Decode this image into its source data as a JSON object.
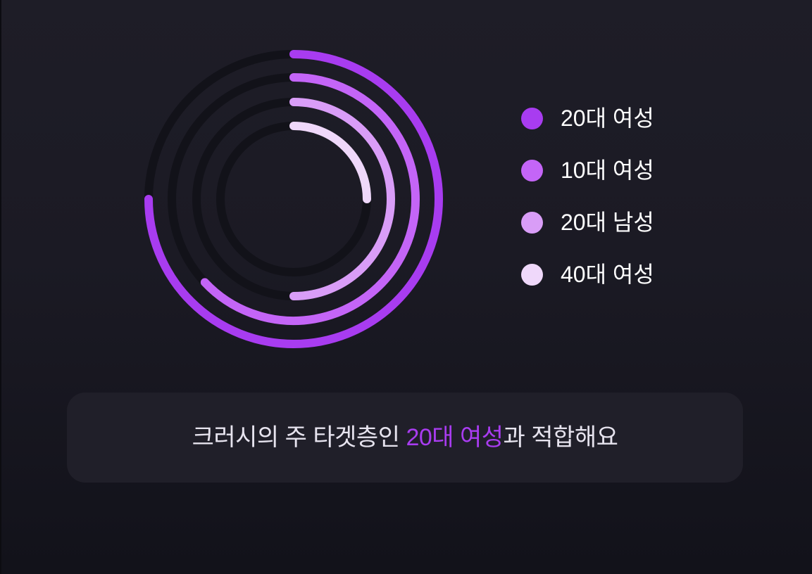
{
  "chart_data": {
    "type": "radial-bar",
    "max": 100,
    "series": [
      {
        "name": "20대 여성",
        "value": 75,
        "color": "#a83cf0"
      },
      {
        "name": "10대 여성",
        "value": 63,
        "color": "#c465f7"
      },
      {
        "name": "20대 남성",
        "value": 50,
        "color": "#d99df7"
      },
      {
        "name": "40대 여성",
        "value": 25,
        "color": "#efd8fa"
      }
    ],
    "track_color": "#121219",
    "legend_position": "right"
  },
  "legend": [
    {
      "label": "20대 여성",
      "color": "#a83cf0"
    },
    {
      "label": "10대 여성",
      "color": "#c465f7"
    },
    {
      "label": "20대 남성",
      "color": "#d99df7"
    },
    {
      "label": "40대 여성",
      "color": "#efd8fa"
    }
  ],
  "caption": {
    "before": "크러시의 주 타겟층인 ",
    "highlight": "20대 여성",
    "after": "과 적합해요",
    "highlight_color": "#a83cf0"
  }
}
